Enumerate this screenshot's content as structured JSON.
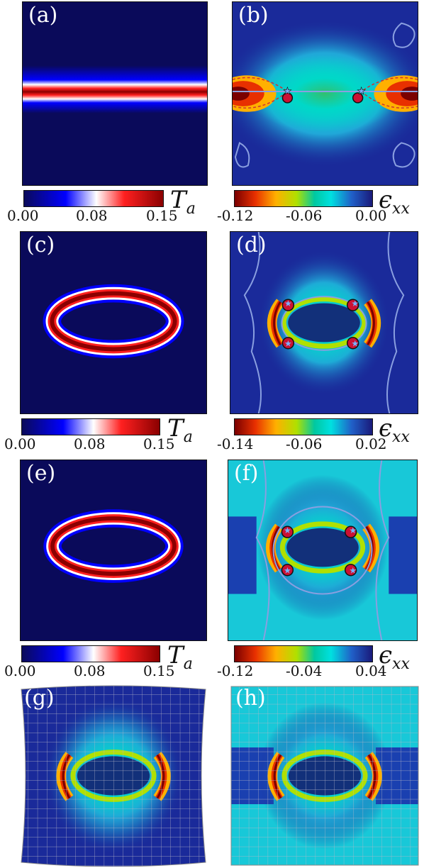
{
  "panels": {
    "a": {
      "label": "(a)"
    },
    "b": {
      "label": "(b)"
    },
    "c": {
      "label": "(c)"
    },
    "d": {
      "label": "(d)"
    },
    "e": {
      "label": "(e)"
    },
    "f": {
      "label": "(f)"
    },
    "g": {
      "label": "(g)"
    },
    "h": {
      "label": "(h)"
    }
  },
  "colorbars": {
    "ta": {
      "symbol": "T",
      "subscript": "a",
      "ticks": [
        "0.00",
        "0.08",
        "0.15"
      ]
    },
    "eps1": {
      "symbol": "ϵ",
      "subscript": "xx",
      "ticks": [
        "-0.12",
        "-0.06",
        "0.00"
      ]
    },
    "eps2": {
      "symbol": "ϵ",
      "subscript": "xx",
      "ticks": [
        "-0.14",
        "-0.06",
        "0.02"
      ]
    },
    "eps3": {
      "symbol": "ϵ",
      "subscript": "xx",
      "ticks": [
        "-0.12",
        "-0.04",
        "0.04"
      ]
    }
  },
  "colors": {
    "background_dark": "#0a0a5a",
    "hot": "#8b0000",
    "contour": "#8a9fe0",
    "defect_dot": "#cc1133",
    "star": "#7ab0ff"
  }
}
